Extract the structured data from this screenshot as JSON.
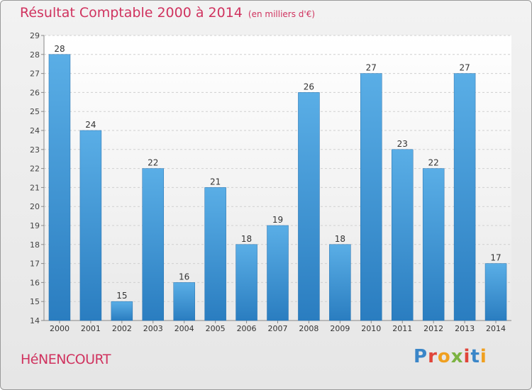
{
  "chart_data": {
    "type": "bar",
    "title": "Résultat Comptable 2000 à 2014",
    "subtitle": "(en milliers d'€)",
    "categories": [
      "2000",
      "2001",
      "2002",
      "2003",
      "2004",
      "2005",
      "2006",
      "2007",
      "2008",
      "2009",
      "2010",
      "2011",
      "2012",
      "2013",
      "2014"
    ],
    "values": [
      28,
      24,
      15,
      22,
      16,
      21,
      18,
      19,
      26,
      18,
      27,
      23,
      22,
      27,
      17
    ],
    "ylim": [
      14,
      29
    ],
    "yticks": [
      14,
      15,
      16,
      17,
      18,
      19,
      20,
      21,
      22,
      23,
      24,
      25,
      26,
      27,
      28,
      29
    ],
    "grid": true,
    "xlabel": "",
    "ylabel": "",
    "bar_color": "#3d94d6"
  },
  "footer": {
    "commune": "HéNENCOURT",
    "logo": "Proxiti"
  }
}
